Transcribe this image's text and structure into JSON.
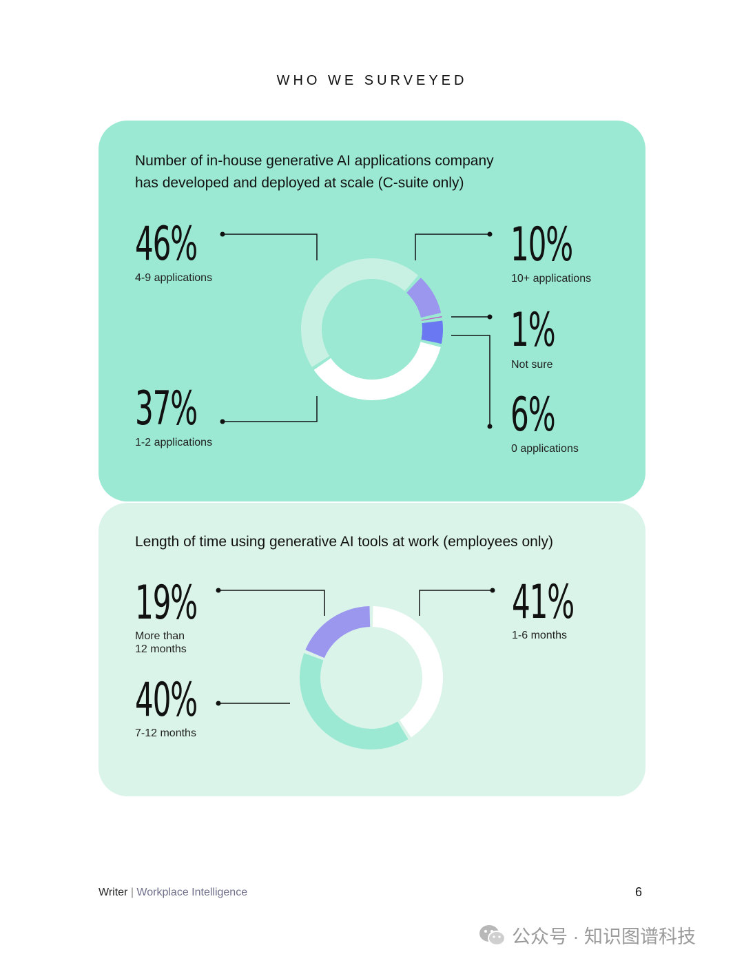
{
  "section_title": "WHO WE SURVEYED",
  "chart_data": [
    {
      "type": "pie",
      "donut": true,
      "title_lines": [
        "Number of in-house generative AI applications company",
        "has developed and deployed at scale (C-suite only)"
      ],
      "slices": [
        {
          "value": "46%",
          "pct": 46,
          "label": "4-9 applications",
          "color": "#c9f1e3"
        },
        {
          "value": "10%",
          "pct": 10,
          "label": "10+ applications",
          "color": "#9b97ee"
        },
        {
          "value": "1%",
          "pct": 1,
          "label": "Not sure",
          "color": "#c24fc4"
        },
        {
          "value": "6%",
          "pct": 6,
          "label": "0 applications",
          "color": "#6a79f2"
        },
        {
          "value": "37%",
          "pct": 37,
          "label": "1-2 applications",
          "color": "#ffffff"
        }
      ]
    },
    {
      "type": "pie",
      "donut": true,
      "title_lines": [
        "Length of time using generative AI tools at work (employees only)"
      ],
      "slices": [
        {
          "value": "41%",
          "pct": 41,
          "label_lines": [
            "1-6 months"
          ],
          "color": "#ffffff"
        },
        {
          "value": "40%",
          "pct": 40,
          "label_lines": [
            "7-12 months"
          ],
          "color": "#9be9d2"
        },
        {
          "value": "19%",
          "pct": 19,
          "label_lines": [
            "More than",
            "12 months"
          ],
          "color": "#9b97ee"
        }
      ]
    }
  ],
  "footer": {
    "brand": "Writer",
    "separator": " | ",
    "subtitle": "Workplace Intelligence",
    "page_number": "6"
  },
  "watermark": {
    "text": "公众号 · 知识图谱科技"
  }
}
